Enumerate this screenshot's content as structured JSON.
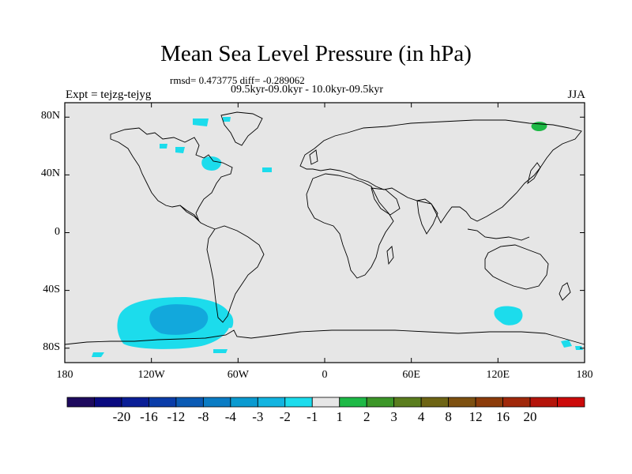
{
  "title": "Mean Sea Level Pressure (in hPa)",
  "stats_line": "rmsd= 0.473775 diff= -0.289062",
  "periods_line": "09.5kyr-09.0kyr - 10.0kyr-09.5kyr",
  "experiment_label": "Expt = tejzg-tejyg",
  "season_label": "JJA",
  "map": {
    "lon_range": [
      -180,
      180
    ],
    "lat_range": [
      -90,
      90
    ],
    "background_color": "#e6e6e6",
    "coastline_color": "#000000",
    "y_ticks": [
      {
        "label": "80N",
        "lat": 80
      },
      {
        "label": "40N",
        "lat": 40
      },
      {
        "label": "0",
        "lat": 0
      },
      {
        "label": "40S",
        "lat": -40
      },
      {
        "label": "80S",
        "lat": -80
      }
    ],
    "x_ticks": [
      {
        "label": "180",
        "lon": -180
      },
      {
        "label": "120W",
        "lon": -120
      },
      {
        "label": "60W",
        "lon": -60
      },
      {
        "label": "0",
        "lon": 0
      },
      {
        "label": "60E",
        "lon": 60
      },
      {
        "label": "120E",
        "lon": 120
      },
      {
        "label": "180",
        "lon": 180
      }
    ]
  },
  "colorbar": {
    "colors": [
      "#1e0a5e",
      "#0a0a80",
      "#0a1e96",
      "#0a3ca8",
      "#0a5ab4",
      "#0a7cc4",
      "#0a9ad0",
      "#12b4e0",
      "#1cdcec",
      "#e6e6e6",
      "#1eb946",
      "#3c9628",
      "#5a7d1e",
      "#6e6414",
      "#7d5010",
      "#8c3c0a",
      "#a0280a",
      "#b4140a",
      "#cc0a0a"
    ],
    "labels": [
      "-20",
      "-16",
      "-12",
      "-8",
      "-4",
      "-3",
      "-2",
      "-1",
      "1",
      "2",
      "3",
      "4",
      "8",
      "12",
      "16",
      "20"
    ]
  },
  "anomaly_colors": {
    "light_blue": "#1cdcec",
    "mid_blue": "#12a8dc",
    "green": "#1eb946"
  }
}
